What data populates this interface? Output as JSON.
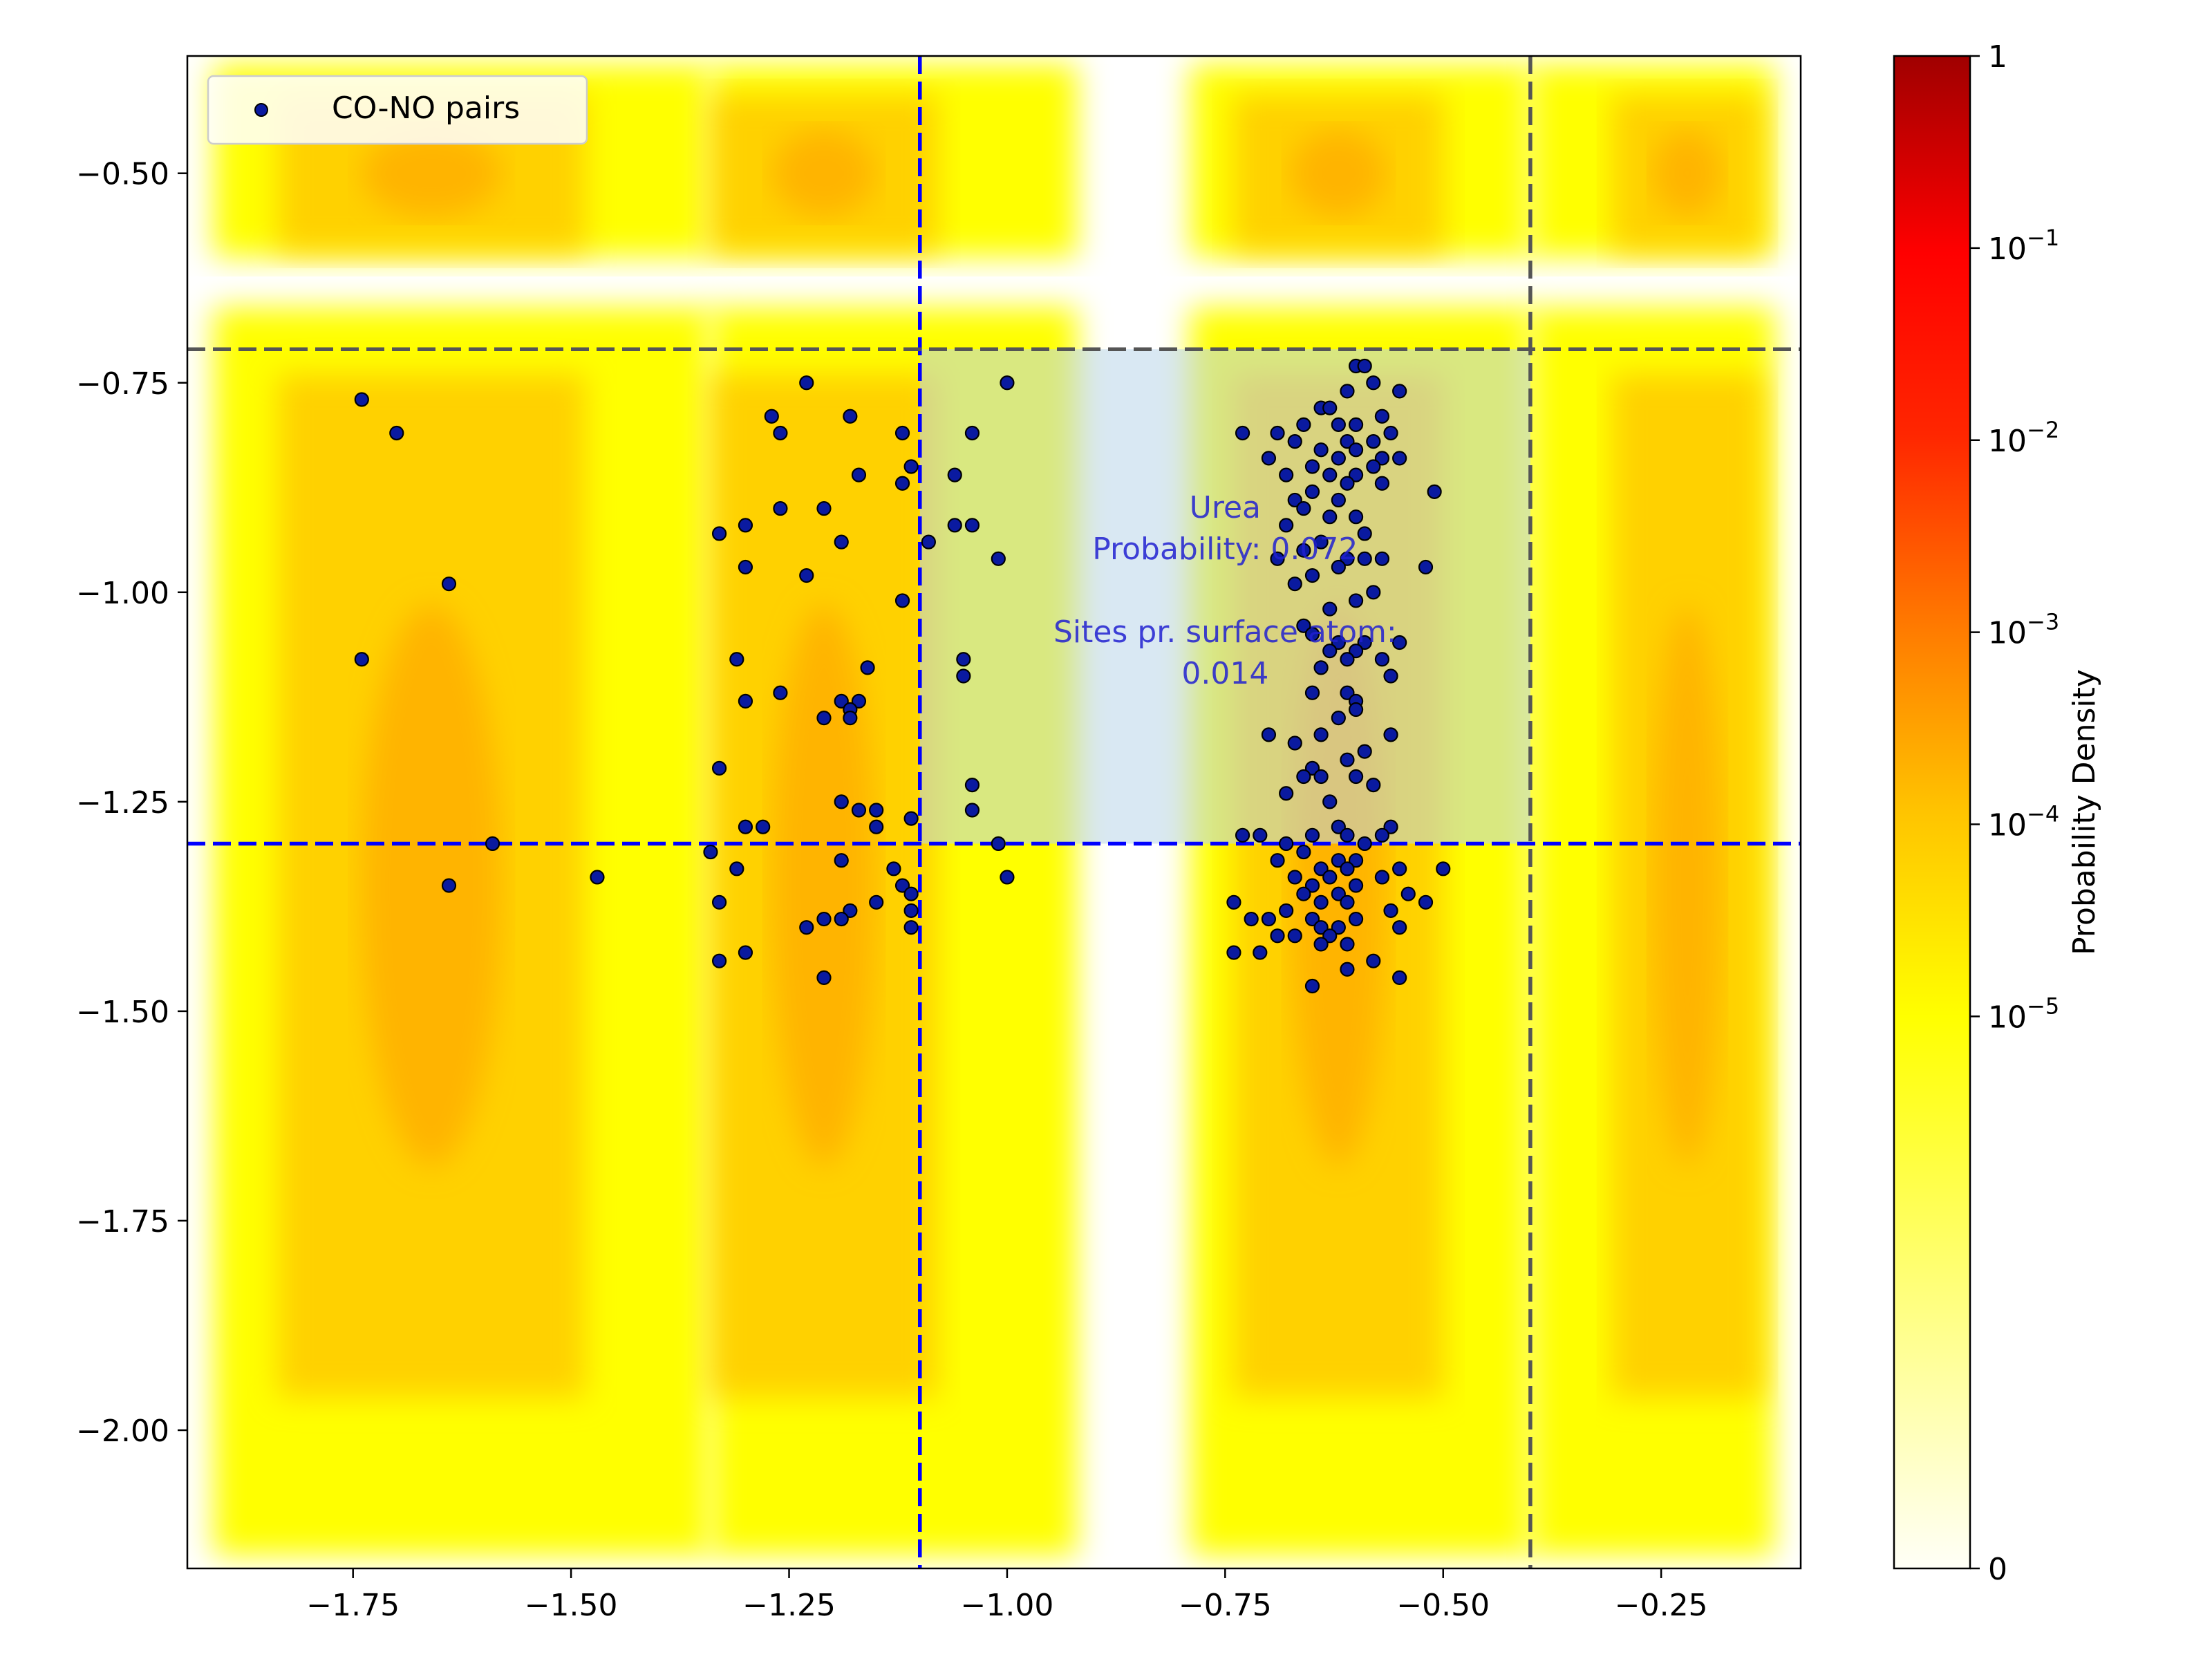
{
  "chart_data": {
    "type": "scatter",
    "xlim": [
      -1.94,
      -0.09
    ],
    "ylim": [
      -2.165,
      -0.36
    ],
    "x_ticks": [
      -1.75,
      -1.5,
      -1.25,
      -1.0,
      -0.75,
      -0.5,
      -0.25
    ],
    "x_tick_labels": [
      "−1.75",
      "−1.50",
      "−1.25",
      "−1.00",
      "−0.75",
      "−0.50",
      "−0.25"
    ],
    "y_ticks": [
      -0.5,
      -0.75,
      -1.0,
      -1.25,
      -1.5,
      -1.75,
      -2.0
    ],
    "y_tick_labels": [
      "−0.50",
      "−0.75",
      "−1.00",
      "−1.25",
      "−1.50",
      "−1.75",
      "−2.00"
    ],
    "grid": false,
    "legend": {
      "placement": "top-left",
      "entries": [
        "CO-NO pairs"
      ]
    },
    "reference_lines": {
      "vertical": [
        {
          "x": -1.1,
          "color": "#0000ff"
        },
        {
          "x": -0.4,
          "color": "#555555"
        }
      ],
      "horizontal": [
        {
          "y": -1.3,
          "color": "#0000ff"
        },
        {
          "y": -0.71,
          "color": "#555555"
        }
      ]
    },
    "highlight_region": {
      "x": [
        -1.1,
        -0.4
      ],
      "y": [
        -1.3,
        -0.71
      ],
      "color": "#b9d5ea"
    },
    "annotation": {
      "lines": [
        "Urea",
        "Probability: 0.072",
        "",
        "Sites pr. surface atom:",
        "0.014"
      ],
      "anchor": [
        -0.75,
        -1.0
      ],
      "color": "#2020d0"
    },
    "colorbar": {
      "label": "Probability Density",
      "scale": "symlog",
      "range": [
        0,
        1
      ],
      "tick_values": [
        1,
        0.1,
        0.01,
        0.001,
        0.0001,
        1e-05,
        0
      ],
      "tick_labels": [
        {
          "base": "1",
          "exp": ""
        },
        {
          "base": "10",
          "exp": "−1"
        },
        {
          "base": "10",
          "exp": "−2"
        },
        {
          "base": "10",
          "exp": "−3"
        },
        {
          "base": "10",
          "exp": "−4"
        },
        {
          "base": "10",
          "exp": "−5"
        },
        {
          "base": "0",
          "exp": ""
        }
      ],
      "colors": [
        "#fffff7",
        "#ffff00",
        "#ffc400",
        "#ff7c00",
        "#ff2600",
        "#ff0000",
        "#a00000"
      ]
    },
    "heatmap_bands": {
      "x_bands": [
        {
          "x": [
            -1.91,
            -1.34
          ],
          "peak": -1.66
        },
        {
          "x": [
            -1.34,
            -0.92
          ],
          "peak": -1.21
        },
        {
          "x": [
            -0.79,
            -0.4
          ],
          "peak": -0.62
        },
        {
          "x": [
            -0.4,
            -0.12
          ],
          "peak": -0.22
        }
      ],
      "y_bands": [
        {
          "y": [
            -0.6,
            -0.37
          ],
          "peak": -0.5
        },
        {
          "y": [
            -2.15,
            -0.66
          ],
          "peak": -1.35
        }
      ]
    },
    "series": [
      {
        "name": "CO-NO pairs",
        "color": "#0a1aa0",
        "points": [
          [
            -1.74,
            -0.77
          ],
          [
            -1.7,
            -0.81
          ],
          [
            -1.64,
            -0.99
          ],
          [
            -1.74,
            -1.08
          ],
          [
            -1.59,
            -1.3
          ],
          [
            -1.64,
            -1.35
          ],
          [
            -1.47,
            -1.34
          ],
          [
            -1.23,
            -0.75
          ],
          [
            -1.27,
            -0.79
          ],
          [
            -1.26,
            -0.81
          ],
          [
            -1.18,
            -0.79
          ],
          [
            -1.12,
            -0.81
          ],
          [
            -1.11,
            -0.85
          ],
          [
            -1.17,
            -0.86
          ],
          [
            -1.12,
            -0.87
          ],
          [
            -1.26,
            -0.9
          ],
          [
            -1.21,
            -0.9
          ],
          [
            -1.3,
            -0.92
          ],
          [
            -1.33,
            -0.93
          ],
          [
            -1.19,
            -0.94
          ],
          [
            -1.09,
            -0.94
          ],
          [
            -1.3,
            -0.97
          ],
          [
            -1.23,
            -0.98
          ],
          [
            -1.12,
            -1.01
          ],
          [
            -1.31,
            -1.08
          ],
          [
            -1.16,
            -1.09
          ],
          [
            -1.26,
            -1.12
          ],
          [
            -1.3,
            -1.13
          ],
          [
            -1.19,
            -1.13
          ],
          [
            -1.17,
            -1.13
          ],
          [
            -1.18,
            -1.14
          ],
          [
            -1.21,
            -1.15
          ],
          [
            -1.18,
            -1.15
          ],
          [
            -1.33,
            -1.21
          ],
          [
            -1.19,
            -1.25
          ],
          [
            -1.17,
            -1.26
          ],
          [
            -1.15,
            -1.26
          ],
          [
            -1.11,
            -1.27
          ],
          [
            -1.15,
            -1.28
          ],
          [
            -1.28,
            -1.28
          ],
          [
            -1.3,
            -1.28
          ],
          [
            -1.34,
            -1.31
          ],
          [
            -1.19,
            -1.32
          ],
          [
            -1.31,
            -1.33
          ],
          [
            -1.13,
            -1.33
          ],
          [
            -1.12,
            -1.35
          ],
          [
            -1.11,
            -1.36
          ],
          [
            -1.33,
            -1.37
          ],
          [
            -1.15,
            -1.37
          ],
          [
            -1.18,
            -1.38
          ],
          [
            -1.11,
            -1.38
          ],
          [
            -1.21,
            -1.39
          ],
          [
            -1.19,
            -1.39
          ],
          [
            -1.11,
            -1.4
          ],
          [
            -1.23,
            -1.4
          ],
          [
            -1.3,
            -1.43
          ],
          [
            -1.33,
            -1.44
          ],
          [
            -1.21,
            -1.46
          ],
          [
            -1.0,
            -0.75
          ],
          [
            -1.04,
            -0.81
          ],
          [
            -1.06,
            -0.86
          ],
          [
            -1.06,
            -0.92
          ],
          [
            -1.04,
            -0.92
          ],
          [
            -1.01,
            -0.96
          ],
          [
            -1.05,
            -1.08
          ],
          [
            -1.05,
            -1.1
          ],
          [
            -1.04,
            -1.23
          ],
          [
            -1.04,
            -1.26
          ],
          [
            -1.01,
            -1.3
          ],
          [
            -1.0,
            -1.34
          ],
          [
            -0.6,
            -0.73
          ],
          [
            -0.59,
            -0.73
          ],
          [
            -0.58,
            -0.75
          ],
          [
            -0.55,
            -0.76
          ],
          [
            -0.61,
            -0.76
          ],
          [
            -0.64,
            -0.78
          ],
          [
            -0.63,
            -0.78
          ],
          [
            -0.57,
            -0.79
          ],
          [
            -0.6,
            -0.8
          ],
          [
            -0.62,
            -0.8
          ],
          [
            -0.66,
            -0.8
          ],
          [
            -0.69,
            -0.81
          ],
          [
            -0.73,
            -0.81
          ],
          [
            -0.56,
            -0.81
          ],
          [
            -0.61,
            -0.82
          ],
          [
            -0.58,
            -0.82
          ],
          [
            -0.67,
            -0.82
          ],
          [
            -0.64,
            -0.83
          ],
          [
            -0.6,
            -0.83
          ],
          [
            -0.57,
            -0.84
          ],
          [
            -0.55,
            -0.84
          ],
          [
            -0.62,
            -0.84
          ],
          [
            -0.7,
            -0.84
          ],
          [
            -0.65,
            -0.85
          ],
          [
            -0.58,
            -0.85
          ],
          [
            -0.6,
            -0.86
          ],
          [
            -0.63,
            -0.86
          ],
          [
            -0.68,
            -0.86
          ],
          [
            -0.61,
            -0.87
          ],
          [
            -0.57,
            -0.87
          ],
          [
            -0.51,
            -0.88
          ],
          [
            -0.65,
            -0.88
          ],
          [
            -0.67,
            -0.89
          ],
          [
            -0.62,
            -0.89
          ],
          [
            -0.66,
            -0.9
          ],
          [
            -0.6,
            -0.91
          ],
          [
            -0.63,
            -0.91
          ],
          [
            -0.68,
            -0.92
          ],
          [
            -0.59,
            -0.93
          ],
          [
            -0.64,
            -0.94
          ],
          [
            -0.66,
            -0.95
          ],
          [
            -0.69,
            -0.96
          ],
          [
            -0.61,
            -0.96
          ],
          [
            -0.57,
            -0.96
          ],
          [
            -0.59,
            -0.96
          ],
          [
            -0.62,
            -0.97
          ],
          [
            -0.52,
            -0.97
          ],
          [
            -0.65,
            -0.98
          ],
          [
            -0.67,
            -0.99
          ],
          [
            -0.58,
            -1.0
          ],
          [
            -0.6,
            -1.01
          ],
          [
            -0.63,
            -1.02
          ],
          [
            -0.66,
            -1.04
          ],
          [
            -0.65,
            -1.05
          ],
          [
            -0.59,
            -1.06
          ],
          [
            -0.62,
            -1.06
          ],
          [
            -0.55,
            -1.06
          ],
          [
            -0.6,
            -1.07
          ],
          [
            -0.63,
            -1.07
          ],
          [
            -0.61,
            -1.08
          ],
          [
            -0.57,
            -1.08
          ],
          [
            -0.64,
            -1.09
          ],
          [
            -0.56,
            -1.1
          ],
          [
            -0.61,
            -1.12
          ],
          [
            -0.65,
            -1.12
          ],
          [
            -0.6,
            -1.13
          ],
          [
            -0.6,
            -1.14
          ],
          [
            -0.62,
            -1.15
          ],
          [
            -0.7,
            -1.17
          ],
          [
            -0.56,
            -1.17
          ],
          [
            -0.64,
            -1.17
          ],
          [
            -0.67,
            -1.18
          ],
          [
            -0.59,
            -1.19
          ],
          [
            -0.61,
            -1.2
          ],
          [
            -0.65,
            -1.21
          ],
          [
            -0.64,
            -1.22
          ],
          [
            -0.66,
            -1.22
          ],
          [
            -0.6,
            -1.22
          ],
          [
            -0.58,
            -1.23
          ],
          [
            -0.68,
            -1.24
          ],
          [
            -0.63,
            -1.25
          ],
          [
            -0.62,
            -1.28
          ],
          [
            -0.56,
            -1.28
          ],
          [
            -0.61,
            -1.29
          ],
          [
            -0.65,
            -1.29
          ],
          [
            -0.57,
            -1.29
          ],
          [
            -0.71,
            -1.29
          ],
          [
            -0.73,
            -1.29
          ],
          [
            -0.68,
            -1.3
          ],
          [
            -0.59,
            -1.3
          ],
          [
            -0.66,
            -1.31
          ],
          [
            -0.62,
            -1.32
          ],
          [
            -0.6,
            -1.32
          ],
          [
            -0.69,
            -1.32
          ],
          [
            -0.64,
            -1.33
          ],
          [
            -0.61,
            -1.33
          ],
          [
            -0.55,
            -1.33
          ],
          [
            -0.5,
            -1.33
          ],
          [
            -0.67,
            -1.34
          ],
          [
            -0.57,
            -1.34
          ],
          [
            -0.63,
            -1.34
          ],
          [
            -0.65,
            -1.35
          ],
          [
            -0.6,
            -1.35
          ],
          [
            -0.66,
            -1.36
          ],
          [
            -0.62,
            -1.36
          ],
          [
            -0.54,
            -1.36
          ],
          [
            -0.52,
            -1.37
          ],
          [
            -0.64,
            -1.37
          ],
          [
            -0.61,
            -1.37
          ],
          [
            -0.74,
            -1.37
          ],
          [
            -0.68,
            -1.38
          ],
          [
            -0.56,
            -1.38
          ],
          [
            -0.65,
            -1.39
          ],
          [
            -0.7,
            -1.39
          ],
          [
            -0.72,
            -1.39
          ],
          [
            -0.6,
            -1.39
          ],
          [
            -0.62,
            -1.4
          ],
          [
            -0.64,
            -1.4
          ],
          [
            -0.55,
            -1.4
          ],
          [
            -0.63,
            -1.41
          ],
          [
            -0.67,
            -1.41
          ],
          [
            -0.69,
            -1.41
          ],
          [
            -0.61,
            -1.42
          ],
          [
            -0.64,
            -1.42
          ],
          [
            -0.71,
            -1.43
          ],
          [
            -0.74,
            -1.43
          ],
          [
            -0.58,
            -1.44
          ],
          [
            -0.61,
            -1.45
          ],
          [
            -0.55,
            -1.46
          ],
          [
            -0.65,
            -1.47
          ]
        ]
      }
    ]
  }
}
